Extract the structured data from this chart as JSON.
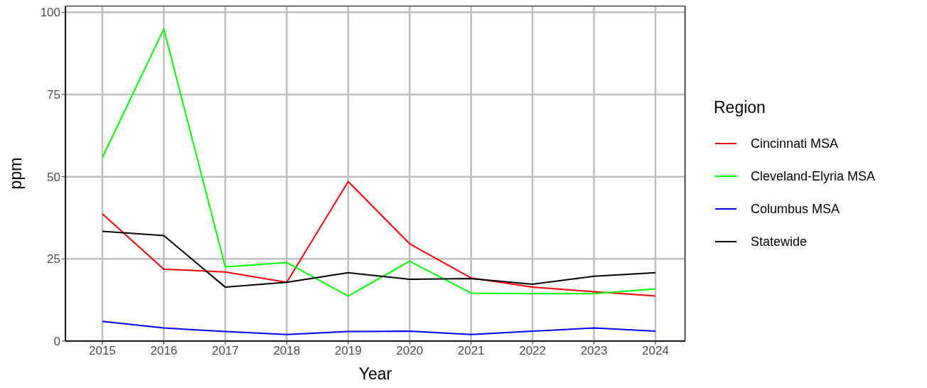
{
  "chart_data": {
    "type": "line",
    "xlabel": "Year",
    "ylabel": "ppm",
    "legend_title": "Region",
    "legend": "right",
    "grid": true,
    "categories": [
      "2015",
      "2016",
      "2017",
      "2018",
      "2019",
      "2020",
      "2021",
      "2022",
      "2023",
      "2024"
    ],
    "ylim": [
      0,
      102
    ],
    "yticks": [
      0,
      25,
      50,
      75,
      100
    ],
    "series": [
      {
        "name": "Cincinnati MSA",
        "color": "#ff0000",
        "values": [
          38.7,
          21.9,
          21.0,
          17.9,
          48.5,
          29.6,
          19.2,
          16.4,
          15.0,
          13.7
        ]
      },
      {
        "name": "Cleveland-Elyria MSA",
        "color": "#00ff00",
        "values": [
          55.8,
          94.9,
          22.6,
          23.9,
          13.7,
          24.3,
          14.6,
          14.4,
          14.4,
          15.9
        ]
      },
      {
        "name": "Columbus MSA",
        "color": "#0000ff",
        "values": [
          6.0,
          4.0,
          2.9,
          2.0,
          2.9,
          3.0,
          2.0,
          3.0,
          4.0,
          3.0
        ]
      },
      {
        "name": "Statewide",
        "color": "#000000",
        "values": [
          33.4,
          32.1,
          16.4,
          17.9,
          20.8,
          18.8,
          19.0,
          17.3,
          19.7,
          20.8
        ]
      }
    ]
  }
}
